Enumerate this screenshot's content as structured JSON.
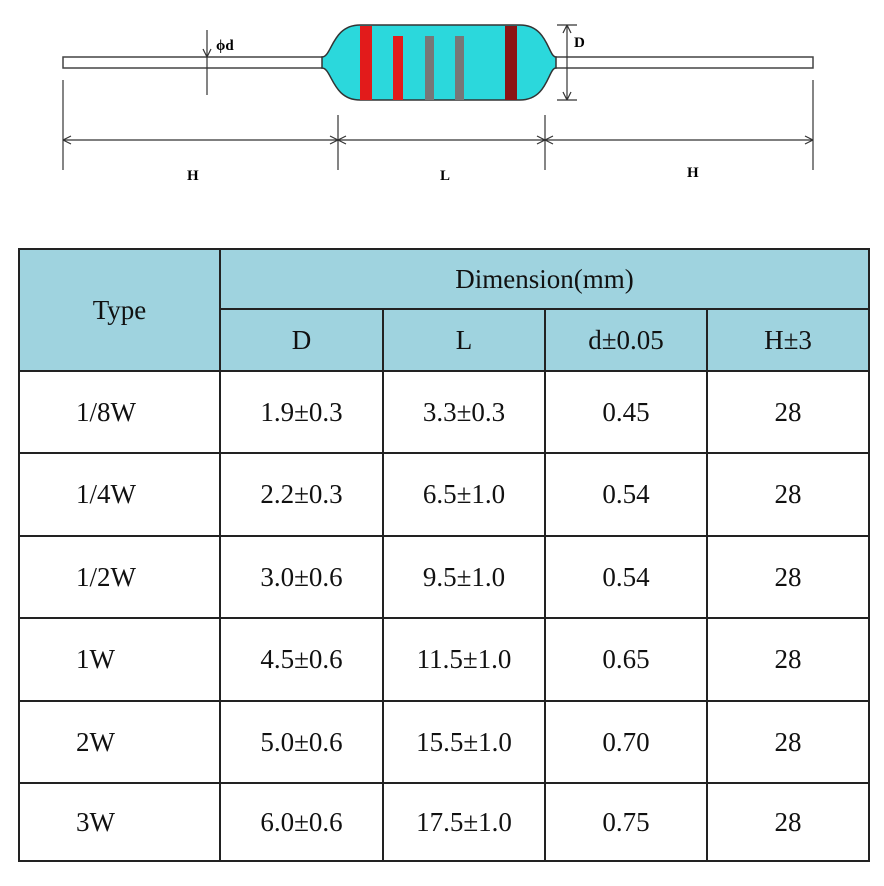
{
  "diagram": {
    "labels": {
      "lead_diameter": "ϕd",
      "body_diameter": "D",
      "lead_left": "H",
      "body_length": "L",
      "lead_right": "H"
    }
  },
  "table": {
    "header": {
      "type": "Type",
      "group": "Dimension(mm)",
      "columns": [
        "D",
        "L",
        "d±0.05",
        "H±3"
      ]
    },
    "rows": [
      [
        "1/8W",
        "1.9±0.3",
        "3.3±0.3",
        "0.45",
        "28"
      ],
      [
        "1/4W",
        "2.2±0.3",
        "6.5±1.0",
        "0.54",
        "28"
      ],
      [
        "1/2W",
        "3.0±0.6",
        "9.5±1.0",
        "0.54",
        "28"
      ],
      [
        "1W",
        "4.5±0.6",
        "11.5±1.0",
        "0.65",
        "28"
      ],
      [
        "2W",
        "5.0±0.6",
        "15.5±1.0",
        "0.70",
        "28"
      ],
      [
        "3W",
        "6.0±0.6",
        "17.5±1.0",
        "0.75",
        "28"
      ]
    ]
  }
}
